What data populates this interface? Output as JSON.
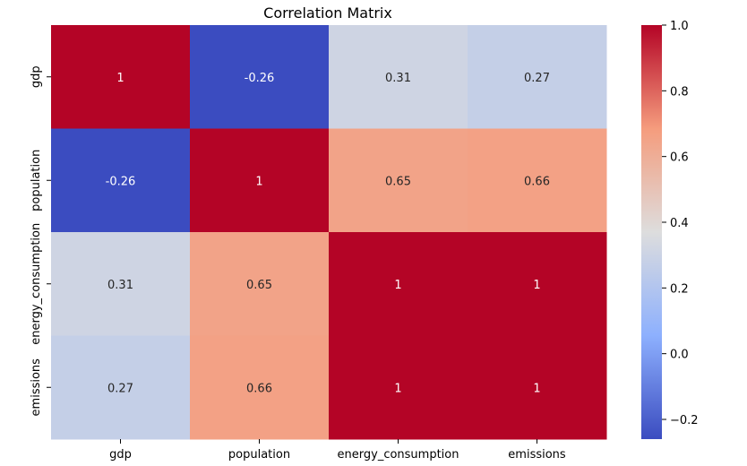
{
  "chart_data": {
    "type": "heatmap",
    "title": "Correlation Matrix",
    "xlabel": "",
    "ylabel": "",
    "x_categories": [
      "gdp",
      "population",
      "energy_consumption",
      "emissions"
    ],
    "y_categories": [
      "gdp",
      "population",
      "energy_consumption",
      "emissions"
    ],
    "values": [
      [
        1,
        -0.26,
        0.31,
        0.27
      ],
      [
        -0.26,
        1,
        0.65,
        0.66
      ],
      [
        0.31,
        0.65,
        1,
        1
      ],
      [
        0.27,
        0.66,
        1,
        1
      ]
    ],
    "annotations": [
      [
        "1",
        "-0.26",
        "0.31",
        "0.27"
      ],
      [
        "-0.26",
        "1",
        "0.65",
        "0.66"
      ],
      [
        "0.31",
        "0.65",
        "1",
        "1"
      ],
      [
        "0.27",
        "0.66",
        "1",
        "1"
      ]
    ],
    "colormap": "coolwarm",
    "vmin": -0.26,
    "vmax": 1.0,
    "colorbar": {
      "ticks": [
        -0.2,
        0.0,
        0.2,
        0.4,
        0.6,
        0.8,
        1.0
      ],
      "tick_labels": [
        "−0.2",
        "0.0",
        "0.2",
        "0.4",
        "0.6",
        "0.8",
        "1.0"
      ],
      "placement": "right"
    },
    "grid": false
  }
}
